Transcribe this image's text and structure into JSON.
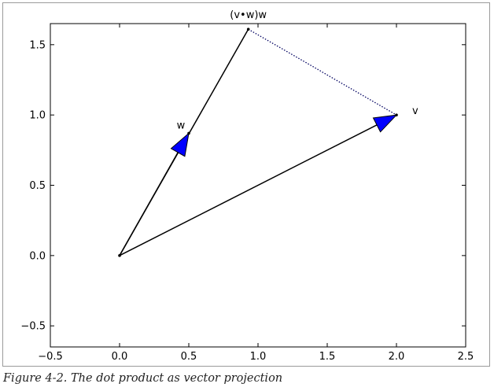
{
  "caption": "Figure 4-2. The dot product as vector projection",
  "chart_data": {
    "type": "line",
    "grid": false,
    "xlim": [
      -0.5,
      2.5
    ],
    "ylim": [
      -0.65,
      1.65
    ],
    "xticks": [
      -0.5,
      0.0,
      0.5,
      1.0,
      1.5,
      2.0,
      2.5
    ],
    "xtick_labels": [
      "−0.5",
      "0.0",
      "0.5",
      "1.0",
      "1.5",
      "2.0",
      "2.5"
    ],
    "yticks": [
      -0.5,
      0.0,
      0.5,
      1.0,
      1.5
    ],
    "ytick_labels": [
      "−0.5",
      "0.0",
      "0.5",
      "1.0",
      "1.5"
    ],
    "vectors": [
      {
        "label": "v",
        "from": [
          0,
          0
        ],
        "to": [
          2,
          1
        ],
        "arrow_color": "#0000ff"
      },
      {
        "label": "w",
        "from": [
          0,
          0
        ],
        "to": [
          0.5,
          0.87
        ],
        "arrow_color": "#0000ff"
      }
    ],
    "lines": [
      {
        "from": [
          0,
          0
        ],
        "to": [
          0.93,
          1.61
        ],
        "style": "solid"
      },
      {
        "from": [
          0.93,
          1.61
        ],
        "to": [
          2,
          1
        ],
        "style": "dotted"
      }
    ],
    "points": [
      [
        0,
        0
      ],
      [
        0.5,
        0.87
      ],
      [
        2,
        1
      ],
      [
        0.93,
        1.61
      ]
    ],
    "annotations": [
      {
        "text": "(v•w)w",
        "at": [
          0.93,
          1.61
        ]
      },
      {
        "text": "w",
        "at": [
          0.5,
          0.87
        ]
      },
      {
        "text": "v",
        "at": [
          2,
          1
        ]
      }
    ]
  }
}
